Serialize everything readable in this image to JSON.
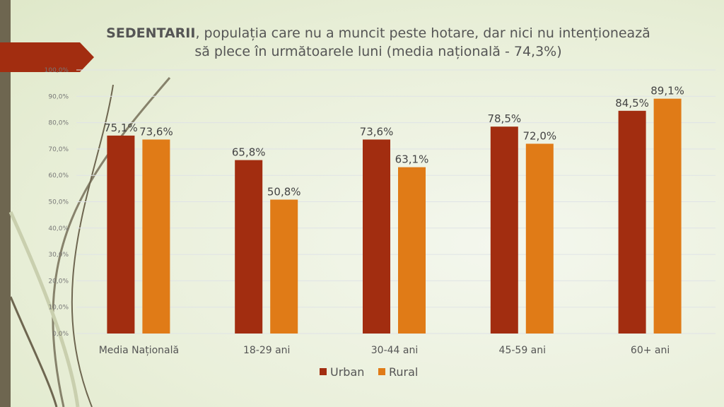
{
  "chart_data": {
    "type": "bar",
    "title_bold": "SEDENTARII",
    "title_rest": ", populația care nu a muncit peste hotare, dar nici nu intenționează să plece în următoarele luni (media națională - 74,3%)",
    "categories": [
      "Media Națională",
      "18-29 ani",
      "30-44 ani",
      "45-59 ani",
      "60+ ani"
    ],
    "series": [
      {
        "name": "Urban",
        "color": "#a22d10",
        "values": [
          75.1,
          65.8,
          73.6,
          78.5,
          84.5
        ],
        "labels": [
          "75,1%",
          "65,8%",
          "73,6%",
          "78,5%",
          "84,5%"
        ]
      },
      {
        "name": "Rural",
        "color": "#e07b17",
        "values": [
          73.6,
          50.8,
          63.1,
          72.0,
          89.1
        ],
        "labels": [
          "73,6%",
          "50,8%",
          "63,1%",
          "72,0%",
          "89,1%"
        ]
      }
    ],
    "yticks": [
      "0,0%",
      "10,0%",
      "20,0%",
      "30,0%",
      "40,0%",
      "50,0%",
      "60,0%",
      "70,0%",
      "80,0%",
      "90,0%",
      "100,0%"
    ],
    "ylim": [
      0,
      100
    ],
    "grid": true,
    "legend": "bottom"
  }
}
